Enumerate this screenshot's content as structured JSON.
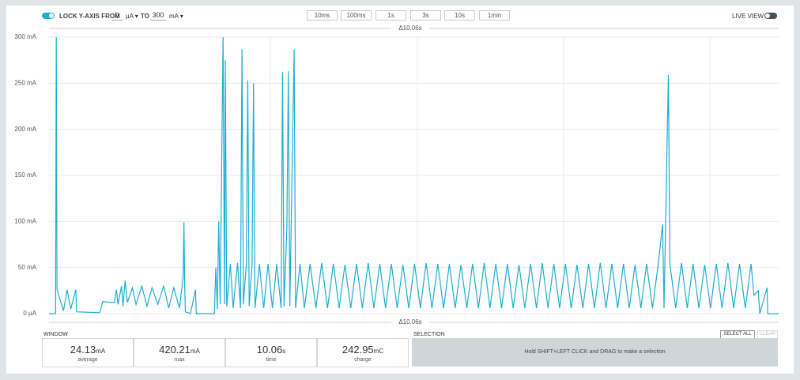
{
  "toolbar": {
    "lock_label": "LOCK Y-AXIS",
    "from_label": "FROM",
    "from_value": "0",
    "from_unit": "µA",
    "to_label": "TO",
    "to_value": "300",
    "to_unit": "mA",
    "time_buttons": [
      "10ms",
      "100ms",
      "1s",
      "3s",
      "10s",
      "1min"
    ],
    "live_view": "LIVE VIEW"
  },
  "chart_data": {
    "type": "line",
    "top_marker": "Δ10.06s",
    "bottom_marker": "Δ10.06s",
    "xlim": [
      0,
      10.06
    ],
    "ylim": [
      0,
      300
    ],
    "yticks": [
      {
        "value": 0,
        "label": "0 µA"
      },
      {
        "value": 50,
        "label": "50 mA"
      },
      {
        "value": 100,
        "label": "100 mA"
      },
      {
        "value": 150,
        "label": "150 mA"
      },
      {
        "value": 200,
        "label": "200 mA"
      },
      {
        "value": 250,
        "label": "250 mA"
      },
      {
        "value": 300,
        "label": "300 mA"
      }
    ],
    "grid": true,
    "x": [
      0,
      0.09,
      0.1,
      0.11,
      0.2,
      0.25,
      0.3,
      0.37,
      0.38,
      0.7,
      0.74,
      0.9,
      0.93,
      0.95,
      1.0,
      1.02,
      1.05,
      1.08,
      1.15,
      1.2,
      1.28,
      1.35,
      1.42,
      1.5,
      1.58,
      1.65,
      1.72,
      1.8,
      1.85,
      1.86,
      1.87,
      1.88,
      1.95,
      2.02,
      2.03,
      2.28,
      2.3,
      2.32,
      2.34,
      2.36,
      2.4,
      2.42,
      2.43,
      2.45,
      2.5,
      2.54,
      2.6,
      2.64,
      2.66,
      2.68,
      2.72,
      2.74,
      2.76,
      2.8,
      2.82,
      2.84,
      2.9,
      2.96,
      3.02,
      3.08,
      3.14,
      3.2,
      3.22,
      3.24,
      3.28,
      3.3,
      3.32,
      3.38,
      3.4,
      3.46,
      3.52,
      3.6,
      3.68,
      3.76,
      3.84,
      3.92,
      4.0,
      4.08,
      4.16,
      4.24,
      4.32,
      4.4,
      4.48,
      4.56,
      4.64,
      4.72,
      4.8,
      4.88,
      4.96,
      5.04,
      5.12,
      5.2,
      5.28,
      5.36,
      5.44,
      5.52,
      5.6,
      5.68,
      5.76,
      5.84,
      5.92,
      6.0,
      6.08,
      6.16,
      6.24,
      6.32,
      6.4,
      6.48,
      6.56,
      6.64,
      6.72,
      6.8,
      6.88,
      6.96,
      7.04,
      7.12,
      7.2,
      7.28,
      7.36,
      7.44,
      7.52,
      7.6,
      7.68,
      7.76,
      7.84,
      7.92,
      8.0,
      8.08,
      8.16,
      8.24,
      8.32,
      8.4,
      8.46,
      8.48,
      8.54,
      8.56,
      8.64,
      8.72,
      8.8,
      8.88,
      8.96,
      9.04,
      9.12,
      9.2,
      9.28,
      9.36,
      9.44,
      9.52,
      9.6,
      9.68,
      9.72,
      9.78,
      9.8,
      9.9,
      9.91,
      10.06
    ],
    "series": [
      {
        "color": "#1eadd0",
        "values": [
          0,
          0,
          300,
          26,
          3,
          26,
          5,
          26,
          2,
          1,
          13,
          12,
          26,
          10,
          30,
          8,
          36,
          12,
          28,
          10,
          30,
          8,
          28,
          10,
          30,
          6,
          28,
          6,
          40,
          99,
          30,
          2,
          0,
          26,
          0,
          0,
          50,
          5,
          100,
          10,
          300,
          10,
          275,
          8,
          54,
          6,
          55,
          6,
          287,
          10,
          54,
          253,
          8,
          54,
          250,
          6,
          54,
          6,
          54,
          6,
          54,
          6,
          262,
          8,
          93,
          263,
          8,
          287,
          6,
          54,
          6,
          54,
          6,
          55,
          6,
          54,
          6,
          53,
          6,
          54,
          6,
          55,
          6,
          54,
          6,
          54,
          6,
          53,
          6,
          54,
          6,
          55,
          6,
          54,
          6,
          54,
          6,
          53,
          6,
          54,
          6,
          55,
          6,
          54,
          6,
          54,
          6,
          53,
          6,
          54,
          6,
          55,
          6,
          54,
          6,
          54,
          6,
          53,
          6,
          54,
          6,
          55,
          6,
          54,
          6,
          54,
          6,
          53,
          6,
          54,
          6,
          54,
          97,
          6,
          259,
          54,
          6,
          55,
          6,
          54,
          6,
          53,
          6,
          54,
          6,
          55,
          6,
          54,
          6,
          54,
          20,
          25,
          0,
          28,
          0,
          0
        ]
      }
    ]
  },
  "window": {
    "title": "WINDOW",
    "stats": [
      {
        "value": "24.13",
        "unit": "mA",
        "label": "average"
      },
      {
        "value": "420.21",
        "unit": "mA",
        "label": "max"
      },
      {
        "value": "10.06",
        "unit": "s",
        "label": "time"
      },
      {
        "value": "242.95",
        "unit": "mC",
        "label": "charge"
      }
    ]
  },
  "selection": {
    "title": "SELECTION",
    "select_all": "SELECT ALL",
    "clear": "CLEAR",
    "hint": "Hold SHIFT+LEFT CLICK and DRAG to make a selection"
  }
}
